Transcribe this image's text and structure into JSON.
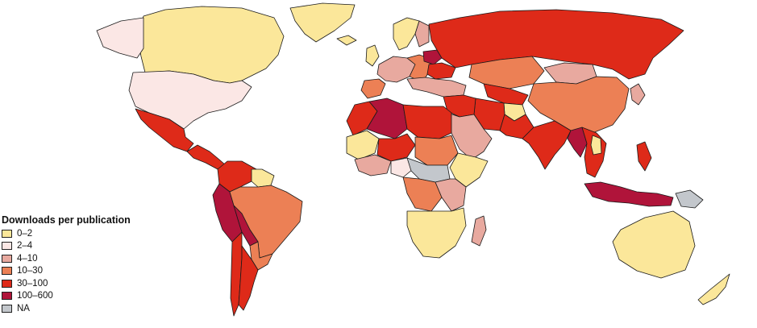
{
  "colors": {
    "0-2": "#fbe79a",
    "2-4": "#fbe7e5",
    "4-10": "#e8a99f",
    "10-30": "#ec8055",
    "30-100": "#de2a19",
    "100-600": "#b0143a",
    "NA": "#c3c7cc",
    "border": "#1a1a1a"
  },
  "legend": {
    "title": "Downloads per publication",
    "items": [
      {
        "label": "0–2",
        "color": "#fbe79a"
      },
      {
        "label": "2–4",
        "color": "#fbe7e5"
      },
      {
        "label": "4–10",
        "color": "#e8a99f"
      },
      {
        "label": "10–30",
        "color": "#ec8055"
      },
      {
        "label": "30–100",
        "color": "#de2a19"
      },
      {
        "label": "100–600",
        "color": "#b0143a"
      },
      {
        "label": "NA",
        "color": "#c3c7cc"
      }
    ]
  },
  "regions": [
    {
      "name": "canada",
      "bin": "0-2"
    },
    {
      "name": "alaska",
      "bin": "2-4"
    },
    {
      "name": "usa",
      "bin": "2-4"
    },
    {
      "name": "greenland",
      "bin": "0-2"
    },
    {
      "name": "mexico",
      "bin": "30-100"
    },
    {
      "name": "central-america",
      "bin": "30-100"
    },
    {
      "name": "colombia-venezuela",
      "bin": "30-100"
    },
    {
      "name": "ecuador-peru",
      "bin": "100-600"
    },
    {
      "name": "brazil",
      "bin": "10-30"
    },
    {
      "name": "bolivia",
      "bin": "100-600"
    },
    {
      "name": "chile",
      "bin": "30-100"
    },
    {
      "name": "argentina",
      "bin": "30-100"
    },
    {
      "name": "guianas",
      "bin": "0-2"
    },
    {
      "name": "paraguay-uruguay",
      "bin": "10-30"
    },
    {
      "name": "iceland",
      "bin": "0-2"
    },
    {
      "name": "scandinavia",
      "bin": "0-2"
    },
    {
      "name": "finland",
      "bin": "4-10"
    },
    {
      "name": "uk",
      "bin": "0-2"
    },
    {
      "name": "western-europe",
      "bin": "4-10"
    },
    {
      "name": "iberia",
      "bin": "10-30"
    },
    {
      "name": "eastern-europe",
      "bin": "10-30"
    },
    {
      "name": "belarus",
      "bin": "100-600"
    },
    {
      "name": "ukraine",
      "bin": "30-100"
    },
    {
      "name": "balkans-turkey",
      "bin": "4-10"
    },
    {
      "name": "russia",
      "bin": "30-100"
    },
    {
      "name": "kazakhstan",
      "bin": "10-30"
    },
    {
      "name": "mongolia",
      "bin": "4-10"
    },
    {
      "name": "china",
      "bin": "10-30"
    },
    {
      "name": "korea-japan",
      "bin": "4-10"
    },
    {
      "name": "central-asia",
      "bin": "30-100"
    },
    {
      "name": "afghanistan",
      "bin": "0-2"
    },
    {
      "name": "iran",
      "bin": "30-100"
    },
    {
      "name": "pakistan",
      "bin": "30-100"
    },
    {
      "name": "india",
      "bin": "30-100"
    },
    {
      "name": "myanmar",
      "bin": "100-600"
    },
    {
      "name": "southeast-asia",
      "bin": "30-100"
    },
    {
      "name": "laos-cambodia",
      "bin": "0-2"
    },
    {
      "name": "indonesia",
      "bin": "100-600"
    },
    {
      "name": "philippines",
      "bin": "30-100"
    },
    {
      "name": "png",
      "bin": "NA"
    },
    {
      "name": "australia",
      "bin": "0-2"
    },
    {
      "name": "new-zealand",
      "bin": "0-2"
    },
    {
      "name": "morocco",
      "bin": "30-100"
    },
    {
      "name": "algeria",
      "bin": "100-600"
    },
    {
      "name": "libya-egypt",
      "bin": "30-100"
    },
    {
      "name": "arabia",
      "bin": "4-10"
    },
    {
      "name": "middle-east",
      "bin": "30-100"
    },
    {
      "name": "sahel-west",
      "bin": "0-2"
    },
    {
      "name": "mali-niger",
      "bin": "30-100"
    },
    {
      "name": "chad-sudan",
      "bin": "10-30"
    },
    {
      "name": "west-africa",
      "bin": "4-10"
    },
    {
      "name": "nigeria",
      "bin": "2-4"
    },
    {
      "name": "central-africa",
      "bin": "NA"
    },
    {
      "name": "east-africa",
      "bin": "4-10"
    },
    {
      "name": "horn-africa",
      "bin": "0-2"
    },
    {
      "name": "congo",
      "bin": "10-30"
    },
    {
      "name": "southern-africa",
      "bin": "0-2"
    },
    {
      "name": "madagascar",
      "bin": "4-10"
    }
  ]
}
